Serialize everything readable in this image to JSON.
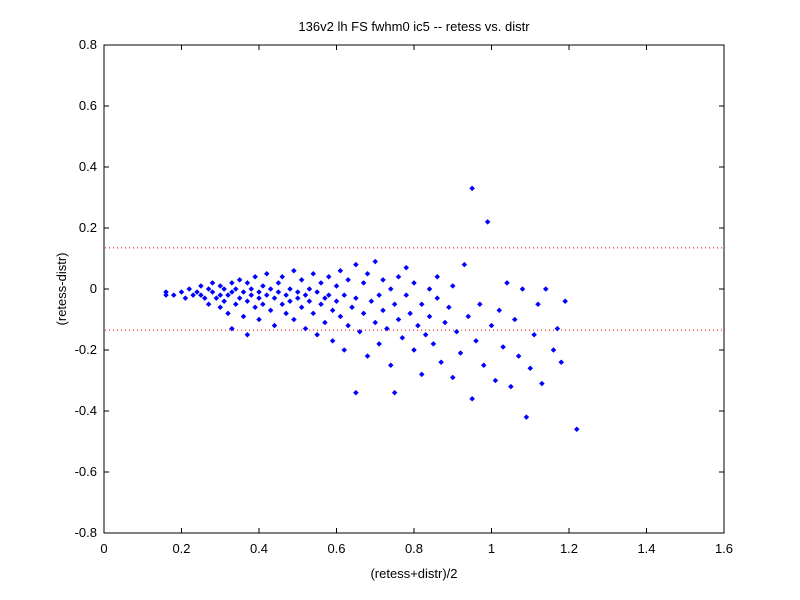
{
  "chart_data": {
    "type": "scatter",
    "title": "136v2 lh FS fwhm0 ic5 -- retess vs. distr",
    "xlabel": "(retess+distr)/2",
    "ylabel": "(retess-distr)",
    "xlim": [
      0,
      1.6
    ],
    "ylim": [
      -0.8,
      0.8
    ],
    "x_ticks": [
      "0",
      "0.2",
      "0.4",
      "0.6",
      "0.8",
      "1",
      "1.2",
      "1.4",
      "1.6"
    ],
    "y_ticks": [
      "0.8",
      "0.6",
      "0.4",
      "0.2",
      "0",
      "-0.2",
      "-0.4",
      "-0.6",
      "-0.8"
    ],
    "grid": false,
    "reference_lines": [
      {
        "y": 0.135,
        "style": "dotted",
        "color": "#ff0000"
      },
      {
        "y": -0.135,
        "style": "dotted",
        "color": "#ff0000"
      }
    ],
    "marker_color": "#0000ff",
    "series": [
      {
        "points": [
          [
            0.16,
            -0.01
          ],
          [
            0.16,
            -0.02
          ],
          [
            0.18,
            -0.02
          ],
          [
            0.2,
            -0.01
          ],
          [
            0.21,
            -0.03
          ],
          [
            0.22,
            0.0
          ],
          [
            0.23,
            -0.02
          ],
          [
            0.24,
            -0.01
          ],
          [
            0.25,
            0.01
          ],
          [
            0.25,
            -0.02
          ],
          [
            0.26,
            -0.03
          ],
          [
            0.27,
            0.0
          ],
          [
            0.27,
            -0.05
          ],
          [
            0.28,
            0.02
          ],
          [
            0.28,
            -0.01
          ],
          [
            0.29,
            -0.03
          ],
          [
            0.3,
            0.01
          ],
          [
            0.3,
            -0.02
          ],
          [
            0.3,
            -0.06
          ],
          [
            0.31,
            0.0
          ],
          [
            0.31,
            -0.04
          ],
          [
            0.32,
            -0.02
          ],
          [
            0.32,
            -0.08
          ],
          [
            0.33,
            0.02
          ],
          [
            0.33,
            -0.01
          ],
          [
            0.33,
            -0.13
          ],
          [
            0.34,
            0.0
          ],
          [
            0.34,
            -0.05
          ],
          [
            0.35,
            -0.03
          ],
          [
            0.35,
            0.03
          ],
          [
            0.36,
            -0.01
          ],
          [
            0.36,
            -0.09
          ],
          [
            0.37,
            0.02
          ],
          [
            0.37,
            -0.04
          ],
          [
            0.37,
            -0.15
          ],
          [
            0.38,
            0.0
          ],
          [
            0.38,
            -0.02
          ],
          [
            0.39,
            -0.06
          ],
          [
            0.39,
            0.04
          ],
          [
            0.4,
            -0.01
          ],
          [
            0.4,
            -0.03
          ],
          [
            0.4,
            -0.1
          ],
          [
            0.41,
            0.01
          ],
          [
            0.41,
            -0.05
          ],
          [
            0.42,
            -0.02
          ],
          [
            0.42,
            0.05
          ],
          [
            0.43,
            -0.07
          ],
          [
            0.43,
            0.0
          ],
          [
            0.44,
            -0.03
          ],
          [
            0.44,
            -0.12
          ],
          [
            0.45,
            0.02
          ],
          [
            0.45,
            -0.01
          ],
          [
            0.46,
            -0.05
          ],
          [
            0.46,
            0.04
          ],
          [
            0.47,
            -0.08
          ],
          [
            0.47,
            -0.02
          ],
          [
            0.48,
            0.0
          ],
          [
            0.48,
            -0.04
          ],
          [
            0.49,
            0.06
          ],
          [
            0.49,
            -0.1
          ],
          [
            0.5,
            -0.01
          ],
          [
            0.5,
            -0.03
          ],
          [
            0.51,
            0.03
          ],
          [
            0.51,
            -0.06
          ],
          [
            0.52,
            -0.02
          ],
          [
            0.52,
            -0.13
          ],
          [
            0.53,
            0.0
          ],
          [
            0.53,
            -0.04
          ],
          [
            0.54,
            0.05
          ],
          [
            0.54,
            -0.08
          ],
          [
            0.55,
            -0.01
          ],
          [
            0.55,
            -0.15
          ],
          [
            0.56,
            0.02
          ],
          [
            0.56,
            -0.05
          ],
          [
            0.57,
            -0.03
          ],
          [
            0.57,
            -0.11
          ],
          [
            0.58,
            0.04
          ],
          [
            0.58,
            -0.02
          ],
          [
            0.59,
            -0.07
          ],
          [
            0.59,
            -0.17
          ],
          [
            0.6,
            0.01
          ],
          [
            0.6,
            -0.04
          ],
          [
            0.61,
            -0.09
          ],
          [
            0.61,
            0.06
          ],
          [
            0.62,
            -0.02
          ],
          [
            0.62,
            -0.2
          ],
          [
            0.63,
            0.03
          ],
          [
            0.63,
            -0.12
          ],
          [
            0.64,
            -0.06
          ],
          [
            0.65,
            0.08
          ],
          [
            0.65,
            -0.34
          ],
          [
            0.65,
            -0.03
          ],
          [
            0.66,
            -0.14
          ],
          [
            0.67,
            0.02
          ],
          [
            0.67,
            -0.08
          ],
          [
            0.68,
            -0.22
          ],
          [
            0.68,
            0.05
          ],
          [
            0.69,
            -0.04
          ],
          [
            0.7,
            -0.11
          ],
          [
            0.7,
            0.09
          ],
          [
            0.71,
            -0.02
          ],
          [
            0.71,
            -0.18
          ],
          [
            0.72,
            0.03
          ],
          [
            0.72,
            -0.07
          ],
          [
            0.73,
            -0.13
          ],
          [
            0.74,
            0.0
          ],
          [
            0.74,
            -0.25
          ],
          [
            0.75,
            -0.05
          ],
          [
            0.75,
            -0.34
          ],
          [
            0.76,
            0.04
          ],
          [
            0.76,
            -0.1
          ],
          [
            0.77,
            -0.16
          ],
          [
            0.78,
            -0.02
          ],
          [
            0.78,
            0.07
          ],
          [
            0.79,
            -0.08
          ],
          [
            0.8,
            -0.2
          ],
          [
            0.8,
            0.02
          ],
          [
            0.81,
            -0.12
          ],
          [
            0.82,
            -0.05
          ],
          [
            0.82,
            -0.28
          ],
          [
            0.83,
            -0.15
          ],
          [
            0.84,
            0.0
          ],
          [
            0.84,
            -0.09
          ],
          [
            0.85,
            -0.18
          ],
          [
            0.86,
            -0.03
          ],
          [
            0.86,
            0.04
          ],
          [
            0.87,
            -0.24
          ],
          [
            0.88,
            -0.11
          ],
          [
            0.89,
            -0.06
          ],
          [
            0.9,
            -0.29
          ],
          [
            0.9,
            0.01
          ],
          [
            0.91,
            -0.14
          ],
          [
            0.92,
            -0.21
          ],
          [
            0.93,
            0.08
          ],
          [
            0.94,
            -0.09
          ],
          [
            0.95,
            0.33
          ],
          [
            0.95,
            -0.36
          ],
          [
            0.96,
            -0.17
          ],
          [
            0.97,
            -0.05
          ],
          [
            0.98,
            -0.25
          ],
          [
            0.99,
            0.22
          ],
          [
            1.0,
            -0.12
          ],
          [
            1.01,
            -0.3
          ],
          [
            1.02,
            -0.07
          ],
          [
            1.03,
            -0.19
          ],
          [
            1.04,
            0.02
          ],
          [
            1.05,
            -0.32
          ],
          [
            1.06,
            -0.1
          ],
          [
            1.07,
            -0.22
          ],
          [
            1.08,
            0.0
          ],
          [
            1.09,
            -0.42
          ],
          [
            1.1,
            -0.26
          ],
          [
            1.11,
            -0.15
          ],
          [
            1.12,
            -0.05
          ],
          [
            1.13,
            -0.31
          ],
          [
            1.14,
            0.0
          ],
          [
            1.16,
            -0.2
          ],
          [
            1.17,
            -0.13
          ],
          [
            1.18,
            -0.24
          ],
          [
            1.19,
            -0.04
          ],
          [
            1.22,
            -0.46
          ]
        ]
      }
    ]
  }
}
